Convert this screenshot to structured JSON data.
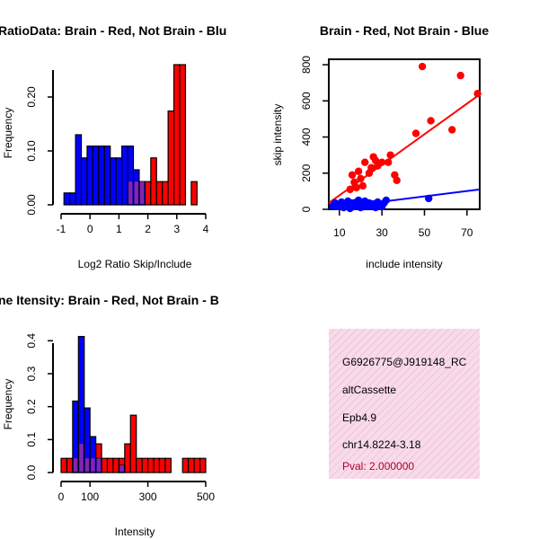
{
  "chart_data": [
    {
      "type": "histogram",
      "title": "RatioData: Brain - Red, Not Brain - Blu",
      "xlabel": "Log2 Ratio Skip/Include",
      "ylabel": "Frequency",
      "xlim": [
        -1,
        4
      ],
      "ylim": [
        0,
        0.26
      ],
      "xticks": [
        "-1",
        "0",
        "1",
        "2",
        "3",
        "4"
      ],
      "yticks": [
        "0.00",
        "0.10",
        "0.20"
      ],
      "bin_width": 0.2,
      "series": [
        {
          "name": "Not Brain",
          "color": "#0000ff",
          "bins": [
            {
              "x0": -0.9,
              "value": 0.022
            },
            {
              "x0": -0.7,
              "value": 0.022
            },
            {
              "x0": -0.5,
              "value": 0.13
            },
            {
              "x0": -0.3,
              "value": 0.087
            },
            {
              "x0": -0.1,
              "value": 0.109
            },
            {
              "x0": 0.1,
              "value": 0.109
            },
            {
              "x0": 0.3,
              "value": 0.109
            },
            {
              "x0": 0.5,
              "value": 0.109
            },
            {
              "x0": 0.7,
              "value": 0.087
            },
            {
              "x0": 0.9,
              "value": 0.087
            },
            {
              "x0": 1.1,
              "value": 0.109
            },
            {
              "x0": 1.3,
              "value": 0.109
            },
            {
              "x0": 1.5,
              "value": 0.065
            },
            {
              "x0": 1.7,
              "value": 0.043
            }
          ]
        },
        {
          "name": "Brain",
          "color": "#ff0000",
          "bins": [
            {
              "x0": 1.3,
              "value": 0.043
            },
            {
              "x0": 1.5,
              "value": 0.043
            },
            {
              "x0": 1.7,
              "value": 0.043
            },
            {
              "x0": 1.9,
              "value": 0.043
            },
            {
              "x0": 2.1,
              "value": 0.087
            },
            {
              "x0": 2.3,
              "value": 0.043
            },
            {
              "x0": 2.5,
              "value": 0.043
            },
            {
              "x0": 2.7,
              "value": 0.174
            },
            {
              "x0": 2.9,
              "value": 0.26
            },
            {
              "x0": 3.1,
              "value": 0.26
            },
            {
              "x0": 3.5,
              "value": 0.043
            }
          ]
        }
      ]
    },
    {
      "type": "scatter",
      "title": "Brain - Red, Not Brain - Blue",
      "xlabel": "include intensity",
      "ylabel": "skip intensity",
      "xlim": [
        5,
        76
      ],
      "ylim": [
        0,
        830
      ],
      "xticks": [
        10,
        30,
        50,
        70
      ],
      "yticks": [
        0,
        200,
        400,
        600,
        800
      ],
      "series": [
        {
          "name": "Brain",
          "color": "#ff0000",
          "points": [
            [
              15,
              110
            ],
            [
              16,
              190
            ],
            [
              17,
              150
            ],
            [
              18,
              120
            ],
            [
              19,
              210
            ],
            [
              20,
              170
            ],
            [
              21,
              130
            ],
            [
              22,
              260
            ],
            [
              24,
              200
            ],
            [
              25,
              230
            ],
            [
              26,
              290
            ],
            [
              27,
              270
            ],
            [
              28,
              240
            ],
            [
              30,
              260
            ],
            [
              33,
              260
            ],
            [
              34,
              300
            ],
            [
              36,
              190
            ],
            [
              37,
              160
            ],
            [
              46,
              420
            ],
            [
              49,
              790
            ],
            [
              53,
              490
            ],
            [
              63,
              440
            ],
            [
              67,
              740
            ],
            [
              75,
              640
            ]
          ],
          "fit": {
            "x": [
              5,
              76
            ],
            "y": [
              35,
              635
            ]
          }
        },
        {
          "name": "Not Brain",
          "color": "#0000ff",
          "points": [
            [
              7,
              20
            ],
            [
              8,
              35
            ],
            [
              9,
              15
            ],
            [
              10,
              25
            ],
            [
              11,
              40
            ],
            [
              12,
              10
            ],
            [
              12,
              30
            ],
            [
              13,
              20
            ],
            [
              14,
              45
            ],
            [
              15,
              5
            ],
            [
              15,
              25
            ],
            [
              16,
              35
            ],
            [
              17,
              15
            ],
            [
              18,
              40
            ],
            [
              18,
              20
            ],
            [
              19,
              50
            ],
            [
              20,
              30
            ],
            [
              20,
              10
            ],
            [
              21,
              25
            ],
            [
              22,
              45
            ],
            [
              23,
              15
            ],
            [
              24,
              35
            ],
            [
              25,
              20
            ],
            [
              26,
              30
            ],
            [
              27,
              10
            ],
            [
              28,
              40
            ],
            [
              29,
              25
            ],
            [
              30,
              15
            ],
            [
              31,
              35
            ],
            [
              32,
              50
            ],
            [
              52,
              60
            ]
          ],
          "fit": {
            "x": [
              5,
              76
            ],
            "y": [
              5,
              110
            ]
          }
        }
      ]
    },
    {
      "type": "histogram",
      "title": "ne Itensity: Brain - Red, Not Brain - B",
      "xlabel": "Intensity",
      "ylabel": "Frequency",
      "xlim": [
        0,
        500
      ],
      "ylim": [
        0,
        0.42
      ],
      "xticks": [
        "0",
        "100",
        "300",
        "500"
      ],
      "yticks": [
        "0.0",
        "0.1",
        "0.2",
        "0.3",
        "0.4"
      ],
      "bin_width": 20,
      "series": [
        {
          "name": "Not Brain",
          "color": "#0000ff",
          "bins": [
            {
              "x0": 40,
              "value": 0.217
            },
            {
              "x0": 60,
              "value": 0.413
            },
            {
              "x0": 80,
              "value": 0.196
            },
            {
              "x0": 100,
              "value": 0.109
            },
            {
              "x0": 120,
              "value": 0.043
            },
            {
              "x0": 200,
              "value": 0.022
            }
          ]
        },
        {
          "name": "Brain",
          "color": "#ff0000",
          "bins": [
            {
              "x0": 0,
              "value": 0.043
            },
            {
              "x0": 20,
              "value": 0.043
            },
            {
              "x0": 40,
              "value": 0.043
            },
            {
              "x0": 60,
              "value": 0.087
            },
            {
              "x0": 80,
              "value": 0.043
            },
            {
              "x0": 100,
              "value": 0.043
            },
            {
              "x0": 120,
              "value": 0.087
            },
            {
              "x0": 140,
              "value": 0.043
            },
            {
              "x0": 160,
              "value": 0.043
            },
            {
              "x0": 180,
              "value": 0.043
            },
            {
              "x0": 200,
              "value": 0.043
            },
            {
              "x0": 220,
              "value": 0.087
            },
            {
              "x0": 240,
              "value": 0.174
            },
            {
              "x0": 260,
              "value": 0.043
            },
            {
              "x0": 280,
              "value": 0.043
            },
            {
              "x0": 300,
              "value": 0.043
            },
            {
              "x0": 320,
              "value": 0.043
            },
            {
              "x0": 340,
              "value": 0.043
            },
            {
              "x0": 360,
              "value": 0.043
            },
            {
              "x0": 420,
              "value": 0.043
            },
            {
              "x0": 440,
              "value": 0.043
            },
            {
              "x0": 460,
              "value": 0.043
            },
            {
              "x0": 480,
              "value": 0.043
            }
          ]
        }
      ]
    }
  ],
  "info_panel": {
    "id": "G6926775@J919148_RC",
    "event_type": "altCassette",
    "gene": "Epb4.9",
    "location": "chr14.8224-3.18",
    "pval": "Pval: 2.000000"
  },
  "colors": {
    "brain": "#ff0000",
    "not_brain": "#0000ff",
    "overlap": "#9c2aa0",
    "info_bg": "#f8dbea"
  }
}
